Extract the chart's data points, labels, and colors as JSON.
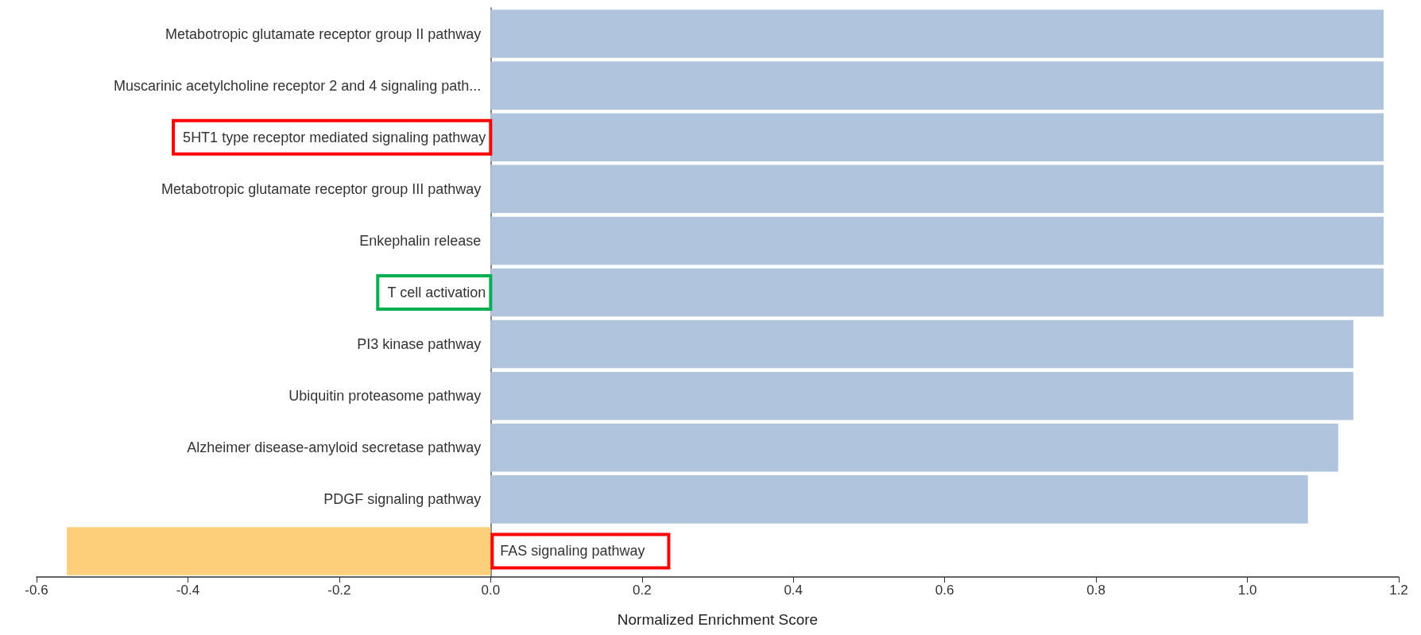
{
  "chart_data": {
    "type": "bar",
    "orientation": "horizontal",
    "xlabel": "Normalized Enrichment Score",
    "categories": [
      "Metabotropic glutamate receptor group II pathway",
      "Muscarinic acetylcholine receptor 2 and 4 signaling path...",
      "5HT1 type receptor mediated signaling pathway",
      "Metabotropic glutamate receptor group III pathway",
      "Enkephalin release",
      "T cell activation",
      "PI3 kinase pathway",
      "Ubiquitin proteasome pathway",
      "Alzheimer disease-amyloid secretase pathway",
      "PDGF signaling pathway",
      "FAS signaling pathway"
    ],
    "values": [
      1.18,
      1.18,
      1.18,
      1.18,
      1.18,
      1.18,
      1.14,
      1.14,
      1.12,
      1.08,
      -0.56
    ],
    "colors": [
      "#b0c4de",
      "#b0c4de",
      "#b0c4de",
      "#b0c4de",
      "#b0c4de",
      "#b0c4de",
      "#b0c4de",
      "#b0c4de",
      "#b0c4de",
      "#b0c4de",
      "#fdcf7a"
    ],
    "xlim": [
      -0.6,
      1.2
    ],
    "xticks": [
      -0.6,
      -0.4,
      -0.2,
      {
        "value": 0,
        "label": "0.0"
      },
      0.2,
      0.4,
      0.6,
      0.8,
      {
        "value": 1,
        "label": "1.0"
      },
      1.2
    ],
    "grid": false
  }
}
